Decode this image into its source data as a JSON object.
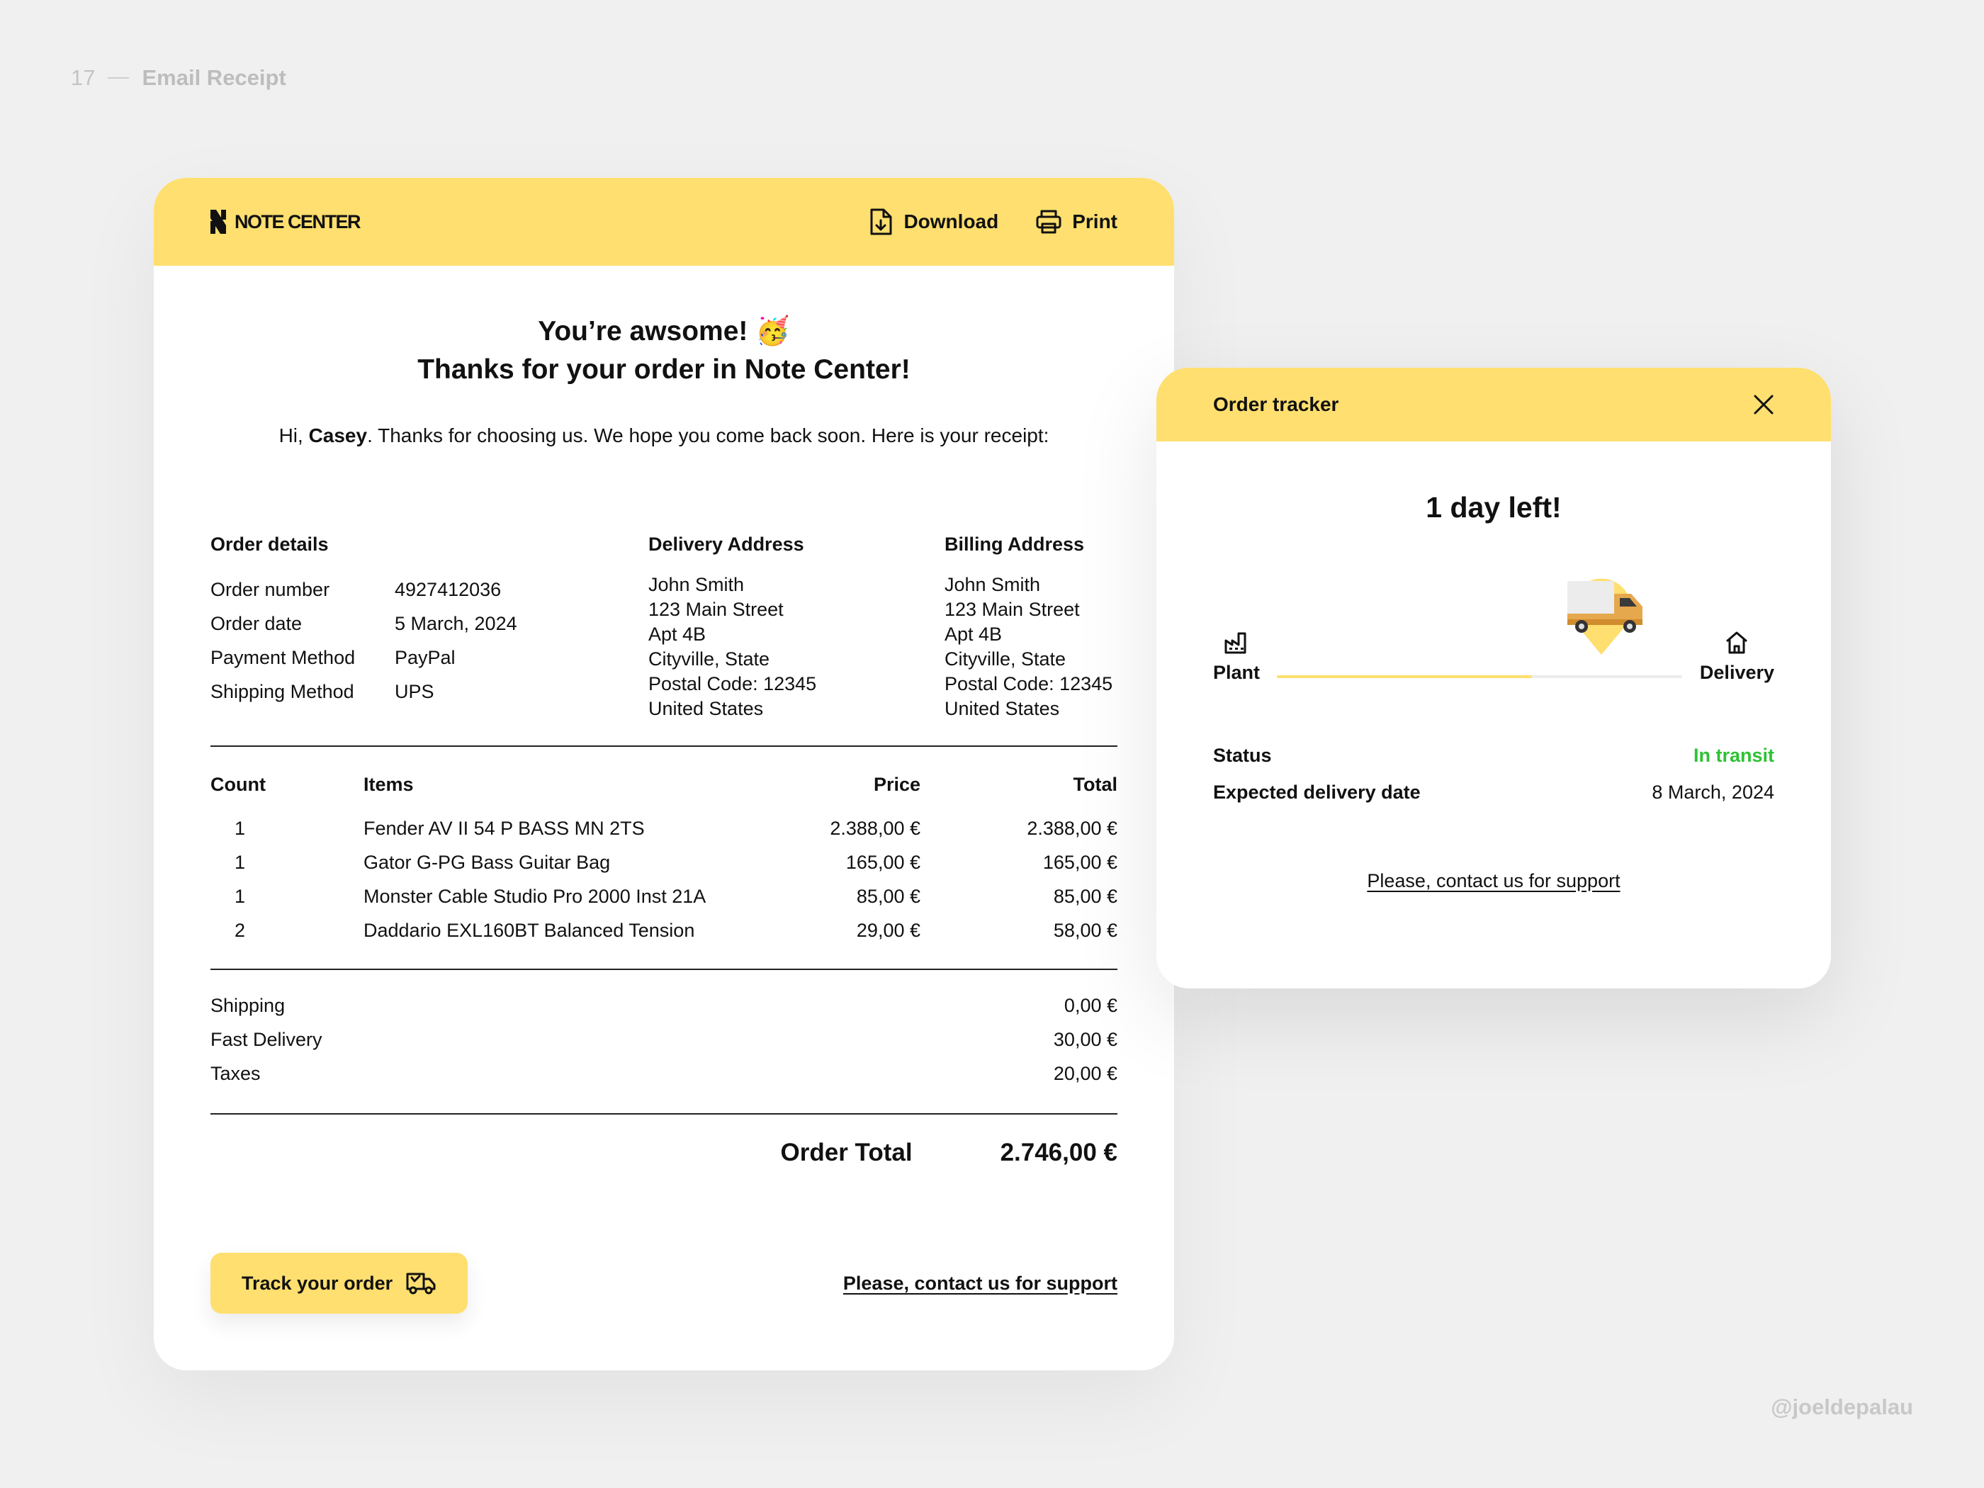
{
  "slide": {
    "number": "17",
    "name": "Email Receipt"
  },
  "credit": "@joeldepalau",
  "colors": {
    "accent": "#fedf6f",
    "status_green": "#2ec234",
    "background": "#f0f0f0"
  },
  "receipt": {
    "brand": "NOTE CENTER",
    "download_label": "Download",
    "print_label": "Print",
    "headline_line1": "You’re awsome! 🥳",
    "headline_line2": "Thanks for your order in Note Center!",
    "greeting_prefix": "Hi, ",
    "greeting_name": "Casey",
    "greeting_suffix": ". Thanks for choosing us. We hope you come back soon. Here is your receipt:",
    "order_details": {
      "title": "Order details",
      "rows": [
        {
          "label": "Order number",
          "value": "4927412036"
        },
        {
          "label": "Order date",
          "value": "5 March, 2024"
        },
        {
          "label": "Payment Method",
          "value": "PayPal"
        },
        {
          "label": "Shipping Method",
          "value": "UPS"
        }
      ]
    },
    "delivery_address": {
      "title": "Delivery Address",
      "lines": [
        "John Smith",
        "123 Main Street",
        "Apt 4B",
        "Cityville, State",
        "Postal Code: 12345",
        "United States"
      ]
    },
    "billing_address": {
      "title": "Billing Address",
      "lines": [
        "John Smith",
        "123 Main Street",
        "Apt 4B",
        "Cityville, State",
        "Postal Code: 12345",
        "United States"
      ]
    },
    "items_table": {
      "headers": {
        "count": "Count",
        "items": "Items",
        "price": "Price",
        "total": "Total"
      },
      "rows": [
        {
          "count": "1",
          "item": "Fender AV II 54 P BASS MN 2TS",
          "price": "2.388,00 €",
          "total": "2.388,00 €"
        },
        {
          "count": "1",
          "item": "Gator G-PG Bass Guitar Bag",
          "price": "165,00 €",
          "total": "165,00 €"
        },
        {
          "count": "1",
          "item": "Monster Cable Studio Pro 2000 Inst 21A",
          "price": "85,00 €",
          "total": "85,00 €"
        },
        {
          "count": "2",
          "item": "Daddario EXL160BT Balanced Tension",
          "price": "29,00 €",
          "total": "58,00 €"
        }
      ]
    },
    "fees": [
      {
        "label": "Shipping",
        "value": "0,00 €"
      },
      {
        "label": "Fast Delivery",
        "value": "30,00 €"
      },
      {
        "label": "Taxes",
        "value": "20,00 €"
      }
    ],
    "order_total_label": "Order Total",
    "order_total_value": "2.746,00 €",
    "track_button_label": "Track your order",
    "support_link": "Please, contact us for support"
  },
  "tracker": {
    "title": "Order tracker",
    "days_left": "1 day left!",
    "origin_label": "Plant",
    "destination_label": "Delivery",
    "progress": 0.63,
    "status_label": "Status",
    "status_value": "In transit",
    "expected_label": "Expected delivery date",
    "expected_value": "8 March, 2024",
    "support_link": "Please, contact us for support"
  }
}
